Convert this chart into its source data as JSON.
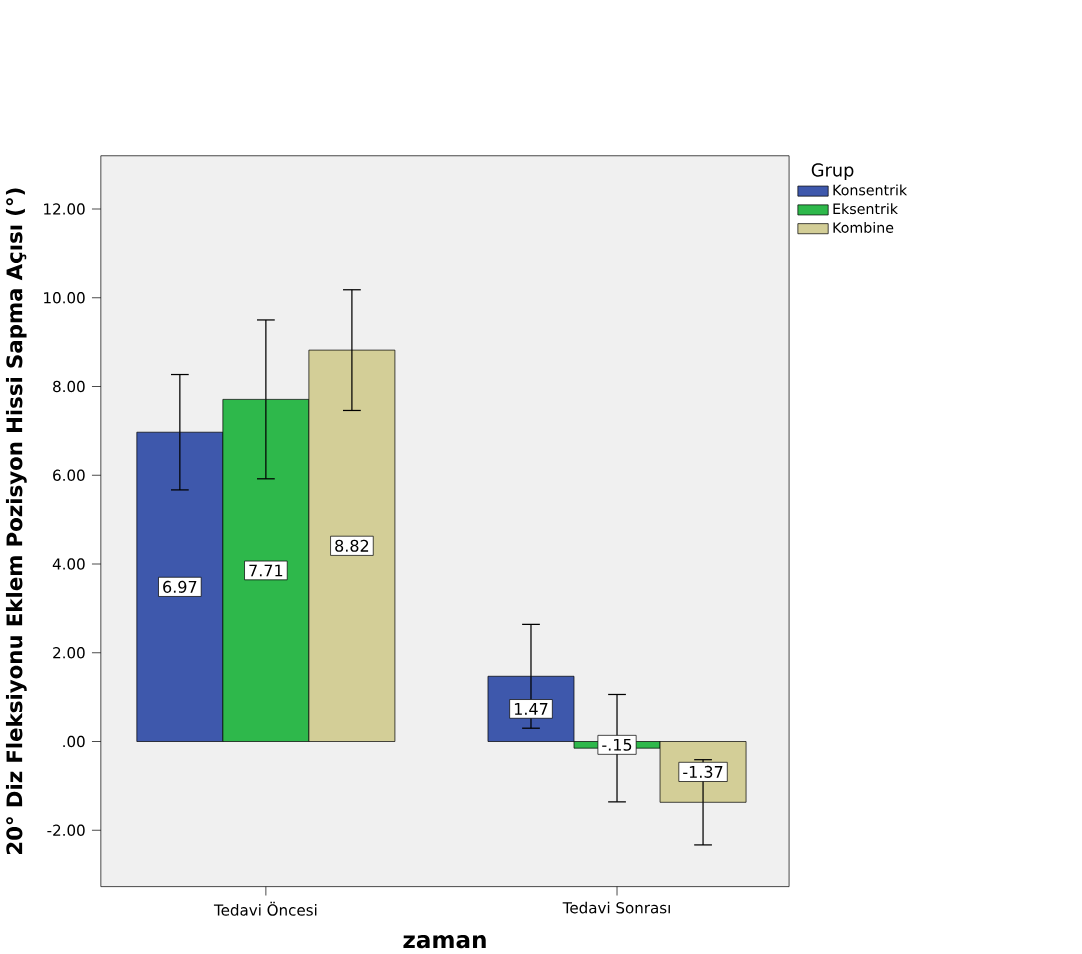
{
  "chart_data": {
    "type": "bar",
    "xlabel": "zaman",
    "ylabel": "20° Diz Fleksiyonu Eklem Pozisyon Hissi Sapma Açısı (°)",
    "legend_title": "Grup",
    "categories": [
      "Tedavi Öncesi",
      "Tedavi Sonrası"
    ],
    "series": [
      {
        "name": "Konsentrik",
        "color": "#3e58ac",
        "values": [
          6.97,
          1.47
        ],
        "errors": [
          1.3,
          1.17
        ],
        "value_labels": [
          "6.97",
          "1.47"
        ]
      },
      {
        "name": "Eksentrik",
        "color": "#2eb84b",
        "values": [
          7.71,
          -0.15
        ],
        "errors": [
          1.79,
          1.21
        ],
        "value_labels": [
          "7.71",
          "-.15"
        ]
      },
      {
        "name": "Kombine",
        "color": "#d3ce97",
        "values": [
          8.82,
          -1.37
        ],
        "errors": [
          1.36,
          0.96
        ],
        "value_labels": [
          "8.82",
          "-1.37"
        ]
      }
    ],
    "ylim": [
      -3.27,
      13.2
    ],
    "yticks": [
      {
        "value": -2,
        "label": "-2.00"
      },
      {
        "value": 0,
        "label": ".00"
      },
      {
        "value": 2,
        "label": "2.00"
      },
      {
        "value": 4,
        "label": "4.00"
      },
      {
        "value": 6,
        "label": "6.00"
      },
      {
        "value": 8,
        "label": "8.00"
      },
      {
        "value": 10,
        "label": "10.00"
      },
      {
        "value": 12,
        "label": "12.00"
      }
    ],
    "legend": "right",
    "grid": false
  }
}
